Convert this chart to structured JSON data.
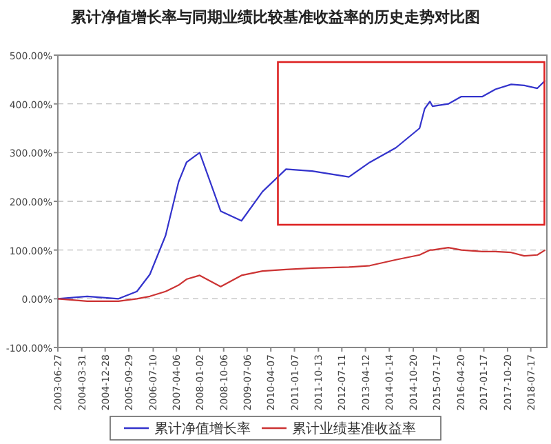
{
  "chart_data": {
    "type": "line",
    "title": "累计净值增长率与同期业绩比较基准收益率的历史走势对比图",
    "x": [
      "2003-06-27",
      "2004-06",
      "2005-06",
      "2006-01",
      "2006-06",
      "2006-12",
      "2007-05",
      "2007-08",
      "2008-01",
      "2008-09",
      "2009-05",
      "2010-01",
      "2010-10",
      "2011-08",
      "2012-10",
      "2013-06",
      "2014-04",
      "2015-01",
      "2015-03",
      "2015-05",
      "2015-06",
      "2015-12",
      "2016-05",
      "2017-01",
      "2017-06",
      "2017-12",
      "2018-05",
      "2018-10",
      "2019-01"
    ],
    "series": [
      {
        "name": "累计净值增长率",
        "color": "#3333cc",
        "values": [
          0,
          5,
          0,
          15,
          50,
          130,
          240,
          280,
          300,
          180,
          160,
          220,
          266,
          262,
          250,
          280,
          310,
          350,
          390,
          405,
          395,
          400,
          415,
          415,
          430,
          440,
          438,
          432,
          448
        ]
      },
      {
        "name": "累计业绩基准收益率",
        "color": "#cc3333",
        "values": [
          0,
          -5,
          -5,
          0,
          5,
          15,
          28,
          40,
          48,
          25,
          48,
          57,
          60,
          63,
          65,
          68,
          80,
          90,
          95,
          100,
          100,
          105,
          100,
          97,
          97,
          95,
          88,
          90,
          100
        ]
      }
    ],
    "xlim": [
      "2003-06-27",
      "2019-01-20"
    ],
    "xticks": [
      "2003-06-27",
      "2004-03-31",
      "2004-12-28",
      "2005-09-29",
      "2006-07-10",
      "2007-04-06",
      "2008-01-02",
      "2008-10-06",
      "2009-07-06",
      "2010-04-07",
      "2011-01-07",
      "2011-10-13",
      "2012-07-11",
      "2013-04-12",
      "2014-01-14",
      "2014-10-20",
      "2015-07-17",
      "2016-04-20",
      "2017-01-17",
      "2017-10-20",
      "2018-07-17"
    ],
    "ylim": [
      -100,
      500
    ],
    "yticks": [
      {
        "value": -100,
        "label": "-100.00%"
      },
      {
        "value": 0,
        "label": "0.00%"
      },
      {
        "value": 100,
        "label": "100.00%"
      },
      {
        "value": 200,
        "label": "200.00%"
      },
      {
        "value": 300,
        "label": "300.00%"
      },
      {
        "value": 400,
        "label": "400.00%"
      },
      {
        "value": 500,
        "label": "500.00%"
      }
    ],
    "grid": "y",
    "legend": "bottom",
    "marker": "none",
    "line_style": "solid"
  }
}
